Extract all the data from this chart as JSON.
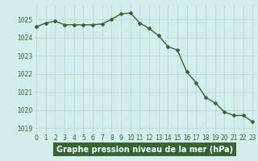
{
  "x": [
    0,
    1,
    2,
    3,
    4,
    5,
    6,
    7,
    8,
    9,
    10,
    11,
    12,
    13,
    14,
    15,
    16,
    17,
    18,
    19,
    20,
    21,
    22,
    23
  ],
  "y": [
    1024.6,
    1024.8,
    1024.9,
    1024.7,
    1024.7,
    1024.7,
    1024.7,
    1024.75,
    1025.0,
    1025.3,
    1025.35,
    1024.8,
    1024.5,
    1024.1,
    1023.5,
    1023.3,
    1022.1,
    1021.5,
    1020.7,
    1020.4,
    1019.9,
    1019.7,
    1019.7,
    1019.35
  ],
  "line_color": "#2d6a2d",
  "marker": "D",
  "marker_size": 2.0,
  "line_width": 1.0,
  "bg_color": "#d4eeee",
  "grid_color": "#b0d8cc",
  "tick_label_color": "#2d6a2d",
  "tick_label_fontsize": 5.5,
  "ylim": [
    1018.7,
    1025.8
  ],
  "yticks": [
    1019,
    1020,
    1021,
    1022,
    1023,
    1024,
    1025
  ],
  "xlim": [
    -0.3,
    23.3
  ],
  "xticks": [
    0,
    1,
    2,
    3,
    4,
    5,
    6,
    7,
    8,
    9,
    10,
    11,
    12,
    13,
    14,
    15,
    16,
    17,
    18,
    19,
    20,
    21,
    22,
    23
  ],
  "grid_linewidth": 0.5,
  "xlabel": "Graphe pression niveau de la mer (hPa)",
  "xlabel_fontsize": 7.0,
  "xlabel_bg": "#336633",
  "xlabel_color": "#ffffff"
}
